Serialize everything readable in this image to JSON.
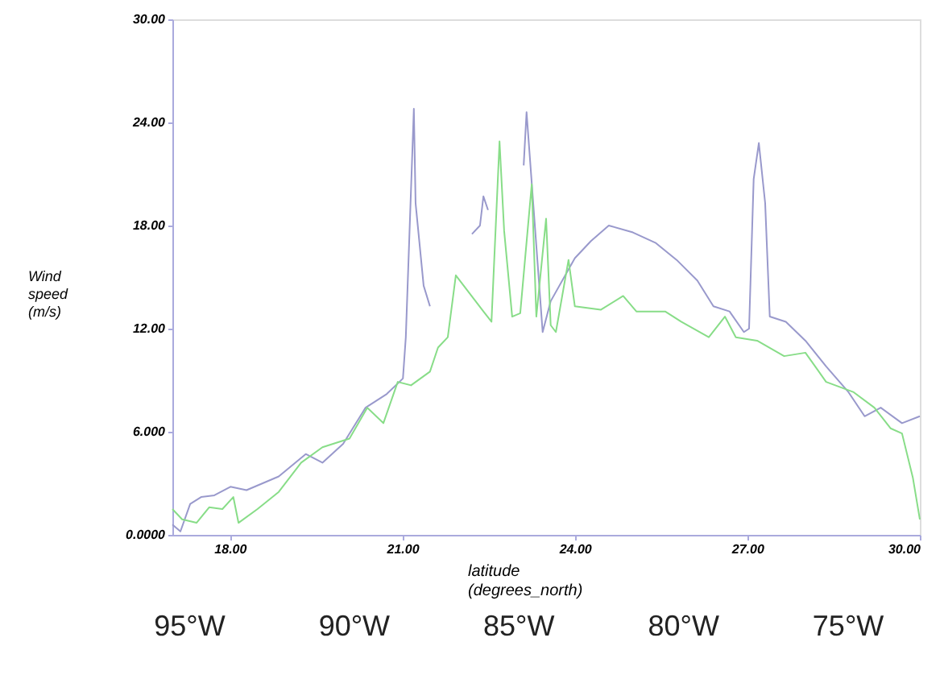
{
  "chart_data": {
    "type": "line",
    "xlabel": "latitude (degrees_north)",
    "ylabel": "Wind speed (m/s)",
    "xlim": [
      17,
      30
    ],
    "xticks": [
      {
        "value": 18,
        "label": "18.00"
      },
      {
        "value": 21,
        "label": "21.00"
      },
      {
        "value": 24,
        "label": "24.00"
      },
      {
        "value": 27,
        "label": "27.00"
      },
      {
        "value": 30,
        "label": "30.00"
      }
    ],
    "ylim": [
      0,
      30
    ],
    "yticks": [
      {
        "value": 0,
        "label": "0.0000"
      },
      {
        "value": 6,
        "label": "6.000"
      },
      {
        "value": 12,
        "label": "12.00"
      },
      {
        "value": 18,
        "label": "18.00"
      },
      {
        "value": 24,
        "label": "24.00"
      },
      {
        "value": 30,
        "label": "30.00"
      }
    ],
    "x2lim": [
      -95.5,
      -72.8
    ],
    "x2ticks": [
      {
        "value": -95,
        "label": "95°W"
      },
      {
        "value": -90,
        "label": "90°W"
      },
      {
        "value": -85,
        "label": "85°W"
      },
      {
        "value": -80,
        "label": "80°W"
      },
      {
        "value": -75,
        "label": "75°W"
      }
    ],
    "grid": false,
    "series": [
      {
        "color": "#9999cc",
        "x": [
          17.0,
          17.14,
          17.31,
          17.5,
          17.73,
          18.01,
          18.29,
          18.85,
          19.32,
          19.61,
          19.97,
          20.36,
          20.73,
          21.01,
          21.06,
          21.2,
          21.23,
          21.37,
          21.48,
          21.8,
          22.21,
          22.35,
          22.41,
          22.49,
          22.8,
          23.11,
          23.16,
          23.44,
          23.58,
          24.0,
          24.28,
          24.59,
          25.01,
          25.4,
          25.77,
          26.13,
          26.41,
          26.69,
          26.94,
          27.03,
          27.11,
          27.2,
          27.31,
          27.39,
          27.67,
          28.01,
          28.37,
          28.76,
          29.04,
          29.32,
          29.69,
          30.0
        ],
        "values": [
          0.6,
          0.2,
          1.8,
          2.2,
          2.3,
          2.8,
          2.6,
          3.4,
          4.7,
          4.2,
          5.3,
          7.4,
          8.2,
          9.1,
          11.5,
          24.8,
          19.3,
          14.5,
          13.3,
          null,
          17.5,
          18.0,
          19.7,
          18.9,
          null,
          21.5,
          24.6,
          11.8,
          13.6,
          16.1,
          17.1,
          18.0,
          17.6,
          17.0,
          16.0,
          14.8,
          13.3,
          13.0,
          11.8,
          12.0,
          20.7,
          22.8,
          19.3,
          12.7,
          12.4,
          11.3,
          9.8,
          8.3,
          6.9,
          7.4,
          6.5,
          6.9
        ]
      },
      {
        "color": "#88dd88",
        "x": [
          17.0,
          17.17,
          17.42,
          17.64,
          17.87,
          18.06,
          18.15,
          18.48,
          18.85,
          19.24,
          19.61,
          20.08,
          20.39,
          20.67,
          20.92,
          21.15,
          21.48,
          21.62,
          21.79,
          21.93,
          22.41,
          22.55,
          22.69,
          22.77,
          22.91,
          23.05,
          23.25,
          23.33,
          23.5,
          23.58,
          23.67,
          23.89,
          24.0,
          24.45,
          24.84,
          25.07,
          25.57,
          25.85,
          26.33,
          26.61,
          26.8,
          27.17,
          27.64,
          28.01,
          28.37,
          28.85,
          29.21,
          29.49,
          29.69,
          29.88,
          30.0
        ],
        "values": [
          1.5,
          0.9,
          0.7,
          1.6,
          1.5,
          2.2,
          0.7,
          1.5,
          2.5,
          4.2,
          5.1,
          5.6,
          7.4,
          6.5,
          8.9,
          8.7,
          9.5,
          10.9,
          11.5,
          15.1,
          13.0,
          12.4,
          22.9,
          17.7,
          12.7,
          12.9,
          20.4,
          12.7,
          18.4,
          12.2,
          11.8,
          16.0,
          13.3,
          13.1,
          13.9,
          13.0,
          13.0,
          12.4,
          11.5,
          12.7,
          11.5,
          11.3,
          10.4,
          10.6,
          8.9,
          8.3,
          7.4,
          6.2,
          5.9,
          3.3,
          0.9
        ]
      }
    ]
  }
}
